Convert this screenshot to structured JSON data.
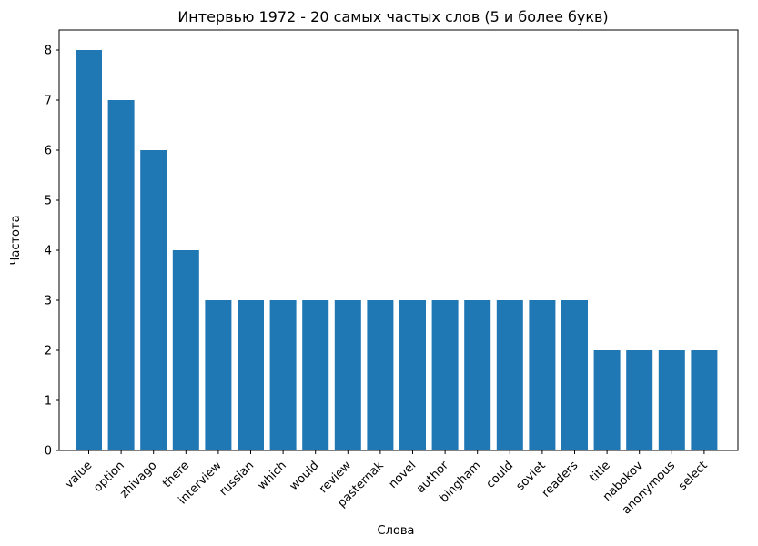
{
  "chart_data": {
    "type": "bar",
    "title": "Интервью 1972 - 20 самых частых слов (5 и более букв)",
    "xlabel": "Слова",
    "ylabel": "Частота",
    "categories": [
      "value",
      "option",
      "zhivago",
      "there",
      "interview",
      "russian",
      "which",
      "would",
      "review",
      "pasternak",
      "novel",
      "author",
      "bingham",
      "could",
      "soviet",
      "readers",
      "title",
      "nabokov",
      "anonymous",
      "select"
    ],
    "values": [
      8,
      7,
      6,
      4,
      3,
      3,
      3,
      3,
      3,
      3,
      3,
      3,
      3,
      3,
      3,
      3,
      2,
      2,
      2,
      2
    ],
    "yticks": [
      0,
      1,
      2,
      3,
      4,
      5,
      6,
      7,
      8
    ],
    "ylim": [
      0,
      8.4
    ],
    "bar_color": "#1f77b4",
    "grid": false,
    "tick_label_rotation": "45°"
  }
}
